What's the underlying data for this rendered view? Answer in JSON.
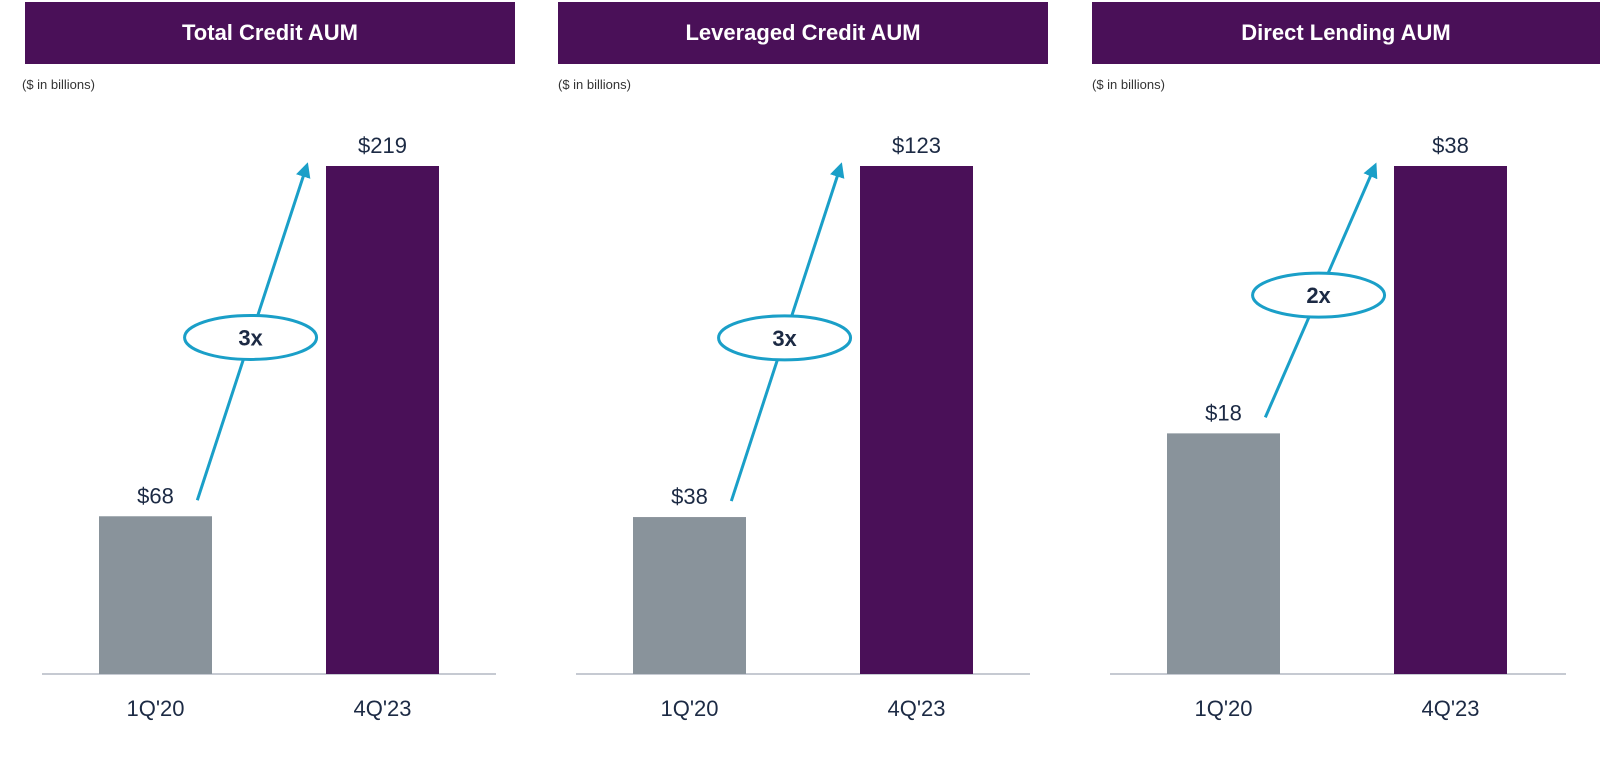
{
  "colors": {
    "header_bg": "#4a1058",
    "bar_1q20": "#89939b",
    "bar_4q23": "#4a1058",
    "arrow": "#1a9fc8",
    "baseline": "#b4b8c4",
    "label_text": "#1c2a44"
  },
  "chart_data": [
    {
      "type": "bar",
      "title": "Total Credit AUM",
      "subtitle": "($ in billions)",
      "categories": [
        "1Q'20",
        "4Q'23"
      ],
      "values": [
        68,
        219
      ],
      "value_labels": [
        "$68",
        "$219"
      ],
      "growth_label": "3x",
      "ylim": [
        0,
        219
      ],
      "grid": false,
      "legend": "none"
    },
    {
      "type": "bar",
      "title": "Leveraged Credit AUM",
      "subtitle": "($ in billions)",
      "categories": [
        "1Q'20",
        "4Q'23"
      ],
      "values": [
        38,
        123
      ],
      "value_labels": [
        "$38",
        "$123"
      ],
      "growth_label": "3x",
      "ylim": [
        0,
        123
      ],
      "grid": false,
      "legend": "none"
    },
    {
      "type": "bar",
      "title": "Direct Lending AUM",
      "subtitle": "($ in billions)",
      "categories": [
        "1Q'20",
        "4Q'23"
      ],
      "values": [
        18,
        38
      ],
      "value_labels": [
        "$18",
        "$38"
      ],
      "growth_label": "2x",
      "ylim": [
        0,
        38
      ],
      "grid": false,
      "legend": "none"
    }
  ]
}
